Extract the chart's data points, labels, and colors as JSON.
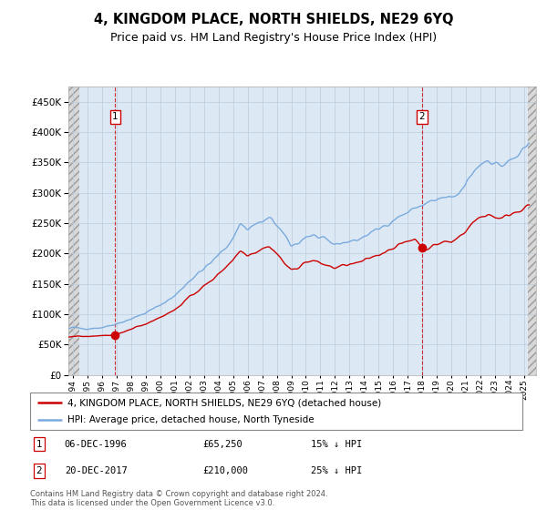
{
  "title": "4, KINGDOM PLACE, NORTH SHIELDS, NE29 6YQ",
  "subtitle": "Price paid vs. HM Land Registry's House Price Index (HPI)",
  "legend_line1": "4, KINGDOM PLACE, NORTH SHIELDS, NE29 6YQ (detached house)",
  "legend_line2": "HPI: Average price, detached house, North Tyneside",
  "annotation1_date": "06-DEC-1996",
  "annotation1_price": "£65,250",
  "annotation1_hpi": "15% ↓ HPI",
  "annotation2_date": "20-DEC-2017",
  "annotation2_price": "£210,000",
  "annotation2_hpi": "25% ↓ HPI",
  "footer": "Contains HM Land Registry data © Crown copyright and database right 2024.\nThis data is licensed under the Open Government Licence v3.0.",
  "yticks": [
    0,
    50000,
    100000,
    150000,
    200000,
    250000,
    300000,
    350000,
    400000,
    450000
  ],
  "ylim": [
    0,
    475000
  ],
  "xlim_start": 1993.7,
  "xlim_end": 2025.8,
  "grid_color": "#bbccdd",
  "bg_plot": "#dce9f5",
  "bg_hatch_color": "#d0d0d0",
  "red_color": "#cc0000",
  "blue_color": "#7aaadd",
  "title_fontsize": 10.5,
  "subtitle_fontsize": 9,
  "sale1_x": 1996.92,
  "sale1_y": 65250,
  "sale2_x": 2017.96,
  "sale2_y": 210000,
  "hatch_left_end": 1994.42,
  "hatch_right_start": 2025.25
}
